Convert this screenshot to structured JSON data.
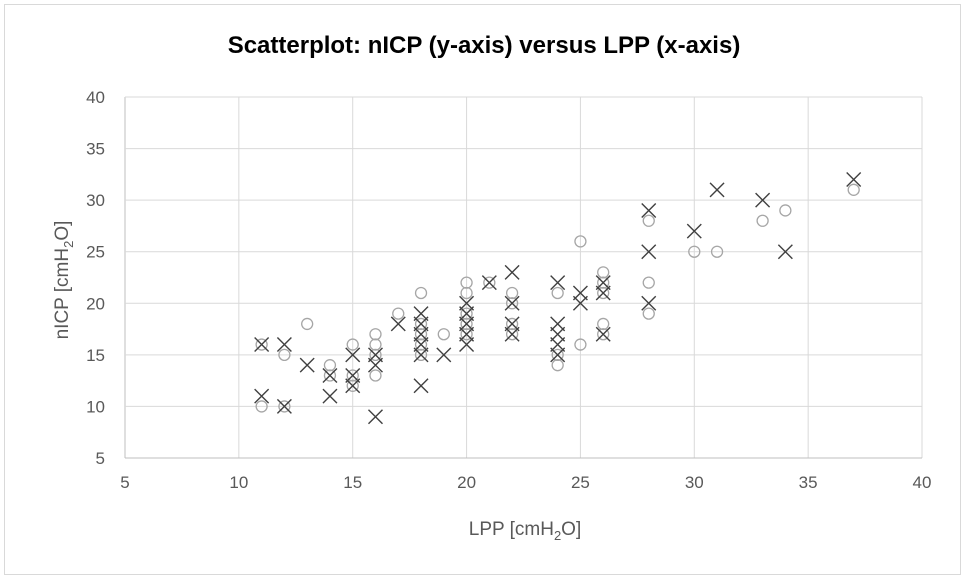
{
  "chart_data": {
    "type": "scatter",
    "title": "Scatterplot: nICP (y-axis) versus LPP (x-axis)",
    "xlabel": {
      "main": "LPP [cmH",
      "sub": "2",
      "tail": "O]"
    },
    "ylabel": {
      "main": "nICP [cmH",
      "sub": "2",
      "tail": "O]"
    },
    "xlim": [
      5,
      40
    ],
    "ylim": [
      5,
      40
    ],
    "xticks": [
      5,
      10,
      15,
      20,
      25,
      30,
      35,
      40
    ],
    "yticks": [
      5,
      10,
      15,
      20,
      25,
      30,
      35,
      40
    ],
    "grid": true,
    "legend": "none",
    "series": [
      {
        "marker": "circle",
        "color": "#a6a6a6",
        "points": [
          [
            11,
            10
          ],
          [
            11,
            16
          ],
          [
            12,
            10
          ],
          [
            12,
            15
          ],
          [
            13,
            18
          ],
          [
            14,
            13
          ],
          [
            14,
            14
          ],
          [
            15,
            12
          ],
          [
            15,
            13
          ],
          [
            15,
            16
          ],
          [
            16,
            13
          ],
          [
            16,
            15
          ],
          [
            16,
            16
          ],
          [
            16,
            17
          ],
          [
            17,
            19
          ],
          [
            18,
            15
          ],
          [
            18,
            16
          ],
          [
            18,
            17
          ],
          [
            18,
            18
          ],
          [
            18,
            21
          ],
          [
            19,
            17
          ],
          [
            20,
            17
          ],
          [
            20,
            18
          ],
          [
            20,
            19
          ],
          [
            20,
            21
          ],
          [
            20,
            22
          ],
          [
            21,
            22
          ],
          [
            22,
            17
          ],
          [
            22,
            18
          ],
          [
            22,
            20
          ],
          [
            22,
            21
          ],
          [
            24,
            14
          ],
          [
            24,
            15
          ],
          [
            24,
            21
          ],
          [
            25,
            16
          ],
          [
            25,
            26
          ],
          [
            26,
            17
          ],
          [
            26,
            18
          ],
          [
            26,
            21
          ],
          [
            26,
            22
          ],
          [
            26,
            23
          ],
          [
            28,
            19
          ],
          [
            28,
            22
          ],
          [
            28,
            28
          ],
          [
            30,
            25
          ],
          [
            31,
            25
          ],
          [
            33,
            28
          ],
          [
            34,
            29
          ],
          [
            37,
            31
          ]
        ]
      },
      {
        "marker": "cross",
        "color": "#404040",
        "points": [
          [
            11,
            11
          ],
          [
            11,
            16
          ],
          [
            12,
            10
          ],
          [
            12,
            16
          ],
          [
            13,
            14
          ],
          [
            14,
            11
          ],
          [
            14,
            13
          ],
          [
            15,
            12
          ],
          [
            15,
            13
          ],
          [
            15,
            15
          ],
          [
            16,
            9
          ],
          [
            16,
            14
          ],
          [
            16,
            15
          ],
          [
            17,
            18
          ],
          [
            18,
            12
          ],
          [
            18,
            15
          ],
          [
            18,
            16
          ],
          [
            18,
            17
          ],
          [
            18,
            18
          ],
          [
            18,
            19
          ],
          [
            19,
            15
          ],
          [
            20,
            16
          ],
          [
            20,
            17
          ],
          [
            20,
            18
          ],
          [
            20,
            19
          ],
          [
            20,
            20
          ],
          [
            21,
            22
          ],
          [
            22,
            17
          ],
          [
            22,
            18
          ],
          [
            22,
            20
          ],
          [
            22,
            23
          ],
          [
            24,
            15
          ],
          [
            24,
            16
          ],
          [
            24,
            17
          ],
          [
            24,
            18
          ],
          [
            24,
            22
          ],
          [
            25,
            20
          ],
          [
            25,
            21
          ],
          [
            26,
            17
          ],
          [
            26,
            21
          ],
          [
            26,
            22
          ],
          [
            28,
            20
          ],
          [
            28,
            25
          ],
          [
            28,
            29
          ],
          [
            30,
            27
          ],
          [
            31,
            31
          ],
          [
            33,
            30
          ],
          [
            34,
            25
          ],
          [
            37,
            32
          ]
        ]
      }
    ]
  }
}
